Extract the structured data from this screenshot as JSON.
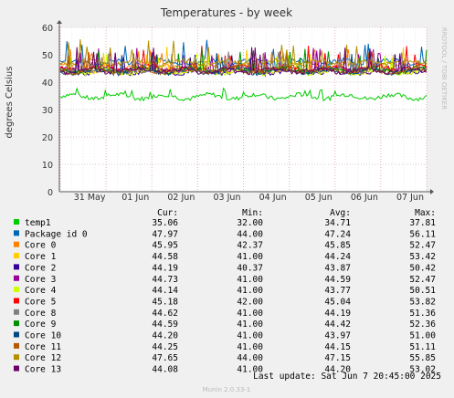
{
  "chart_data": {
    "type": "line",
    "title": "Temperatures - by week",
    "ylabel": "degrees Celsius",
    "side_label": "RRDTOOL / TOBI OETIKER",
    "footer": "Munin 2.0.33-1",
    "ylim": [
      0,
      60
    ],
    "yticks": [
      0,
      10,
      20,
      30,
      40,
      50,
      60
    ],
    "xlim": [
      0,
      8.0
    ],
    "xticks": [
      {
        "label": "31 May",
        "t": 1.0
      },
      {
        "label": "01 Jun",
        "t": 2.0
      },
      {
        "label": "02 Jun",
        "t": 3.0
      },
      {
        "label": "03 Jun",
        "t": 4.0
      },
      {
        "label": "04 Jun",
        "t": 5.0
      },
      {
        "label": "05 Jun",
        "t": 6.0
      },
      {
        "label": "06 Jun",
        "t": 7.0
      },
      {
        "label": "07 Jun",
        "t": 8.0
      }
    ],
    "grid": true,
    "legend_headers": [
      "Cur:",
      "Min:",
      "Avg:",
      "Max:"
    ],
    "series": [
      {
        "name": "temp1",
        "color": "#00cc00",
        "cur": "35.06",
        "min": "32.00",
        "avg": "34.71",
        "max": "37.81"
      },
      {
        "name": "Package id 0",
        "color": "#0066b3",
        "cur": "47.97",
        "min": "44.00",
        "avg": "47.24",
        "max": "56.11"
      },
      {
        "name": "Core 0",
        "color": "#ff8000",
        "cur": "45.95",
        "min": "42.37",
        "avg": "45.85",
        "max": "52.47"
      },
      {
        "name": "Core 1",
        "color": "#ffcc00",
        "cur": "44.58",
        "min": "41.00",
        "avg": "44.24",
        "max": "53.42"
      },
      {
        "name": "Core 2",
        "color": "#330099",
        "cur": "44.19",
        "min": "40.37",
        "avg": "43.87",
        "max": "50.42"
      },
      {
        "name": "Core 3",
        "color": "#990099",
        "cur": "44.73",
        "min": "41.00",
        "avg": "44.59",
        "max": "52.47"
      },
      {
        "name": "Core 4",
        "color": "#ccff00",
        "cur": "44.14",
        "min": "41.00",
        "avg": "43.77",
        "max": "50.51"
      },
      {
        "name": "Core 5",
        "color": "#ff0000",
        "cur": "45.18",
        "min": "42.00",
        "avg": "45.04",
        "max": "53.82"
      },
      {
        "name": "Core 8",
        "color": "#808080",
        "cur": "44.62",
        "min": "41.00",
        "avg": "44.19",
        "max": "51.36"
      },
      {
        "name": "Core 9",
        "color": "#008f00",
        "cur": "44.59",
        "min": "41.00",
        "avg": "44.42",
        "max": "52.36"
      },
      {
        "name": "Core 10",
        "color": "#00487d",
        "cur": "44.20",
        "min": "41.00",
        "avg": "43.97",
        "max": "51.00"
      },
      {
        "name": "Core 11",
        "color": "#b35a00",
        "cur": "44.25",
        "min": "41.00",
        "avg": "44.15",
        "max": "51.11"
      },
      {
        "name": "Core 12",
        "color": "#b38f00",
        "cur": "47.65",
        "min": "44.00",
        "avg": "47.15",
        "max": "55.85"
      },
      {
        "name": "Core 13",
        "color": "#6b006b",
        "cur": "44.08",
        "min": "41.00",
        "avg": "44.20",
        "max": "53.02"
      }
    ],
    "last_update": "Last update:  Sat Jun  7 20:45:00 2025"
  }
}
